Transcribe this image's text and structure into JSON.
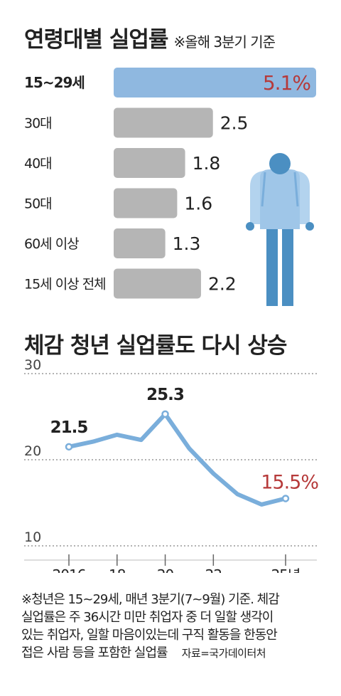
{
  "chart_data": [
    {
      "type": "bar",
      "orientation": "horizontal",
      "title": "연령대별 실업률",
      "subtitle": "※올해 3분기 기준",
      "categories": [
        "15~29세",
        "30대",
        "40대",
        "50대",
        "60세 이상",
        "15세 이상 전체"
      ],
      "values": [
        5.1,
        2.5,
        1.8,
        1.6,
        1.3,
        2.2
      ],
      "value_labels": [
        "5.1%",
        "2.5",
        "1.8",
        "1.6",
        "1.3",
        "2.2"
      ],
      "highlight_index": 0,
      "colors": {
        "highlight": "#8fb8e0",
        "default": "#b5b5b5",
        "highlight_text": "#b63a3a"
      }
    },
    {
      "type": "line",
      "title": "체감 청년 실업률도 다시 상승",
      "x": [
        2016,
        2017,
        2018,
        2019,
        2020,
        2021,
        2022,
        2023,
        2024,
        2025
      ],
      "values": [
        21.5,
        22.1,
        22.9,
        22.3,
        25.3,
        21.3,
        18.4,
        16.0,
        14.8,
        15.5
      ],
      "x_tick_labels": [
        "2016",
        "18",
        "20",
        "22",
        "25년"
      ],
      "x_tick_values": [
        2016,
        2018,
        2020,
        2022,
        2025
      ],
      "y_ticks": [
        10,
        20,
        30
      ],
      "ylim": [
        10,
        30
      ],
      "annotations": [
        {
          "x": 2016,
          "label": "21.5"
        },
        {
          "x": 2020,
          "label": "25.3"
        },
        {
          "x": 2025,
          "label": "15.5%"
        }
      ],
      "colors": {
        "line": "#7aaedb",
        "highlight_text": "#b63a3a"
      }
    }
  ],
  "footnote": {
    "lines": [
      "※청년은 15~29세, 매년 3분기(7~9월) 기준. 체감",
      "실업률은 주 36시간 미만 취업자 중 더 일할 생각이",
      "있는 취업자, 일할 마음이있는데 구직 활동을 한동안",
      "접은 사람 등을 포함한 실업률"
    ],
    "source": "자료=국가데이터처"
  }
}
